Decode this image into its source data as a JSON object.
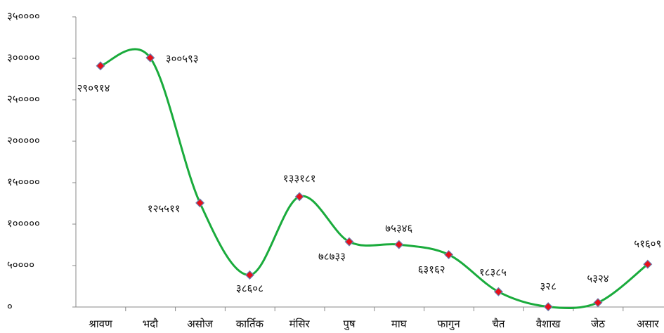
{
  "chart_data": {
    "type": "line",
    "categories": [
      "श्रावण",
      "भदौ",
      "असोज",
      "कार्तिक",
      "मंसिर",
      "पुष",
      "माघ",
      "फागुन",
      "चैत",
      "वैशाख",
      "जेठ",
      "असार"
    ],
    "values": [
      290914,
      300593,
      125511,
      38608,
      133181,
      78733,
      75346,
      63162,
      18385,
      328,
      5324,
      51609
    ],
    "value_labels": [
      "२९०९१४",
      "३००५९३",
      "१२५५११",
      "३८६०८",
      "१३३१८१",
      "७८७३३",
      "७५३४६",
      "६३१६२",
      "१८३८५",
      "३२८",
      "५३२४",
      "५१६०९"
    ],
    "color": "#1aab3c",
    "marker_color": "#e8101a",
    "ylim": [
      0,
      350000
    ],
    "yticks": [
      {
        "value": 0,
        "label": "०"
      },
      {
        "value": 50000,
        "label": "५००००"
      },
      {
        "value": 100000,
        "label": "१०००००"
      },
      {
        "value": 150000,
        "label": "१५००००"
      },
      {
        "value": 200000,
        "label": "२०००००"
      },
      {
        "value": 250000,
        "label": "२५००००"
      },
      {
        "value": 300000,
        "label": "३०००००"
      },
      {
        "value": 350000,
        "label": "३५००००"
      }
    ]
  }
}
